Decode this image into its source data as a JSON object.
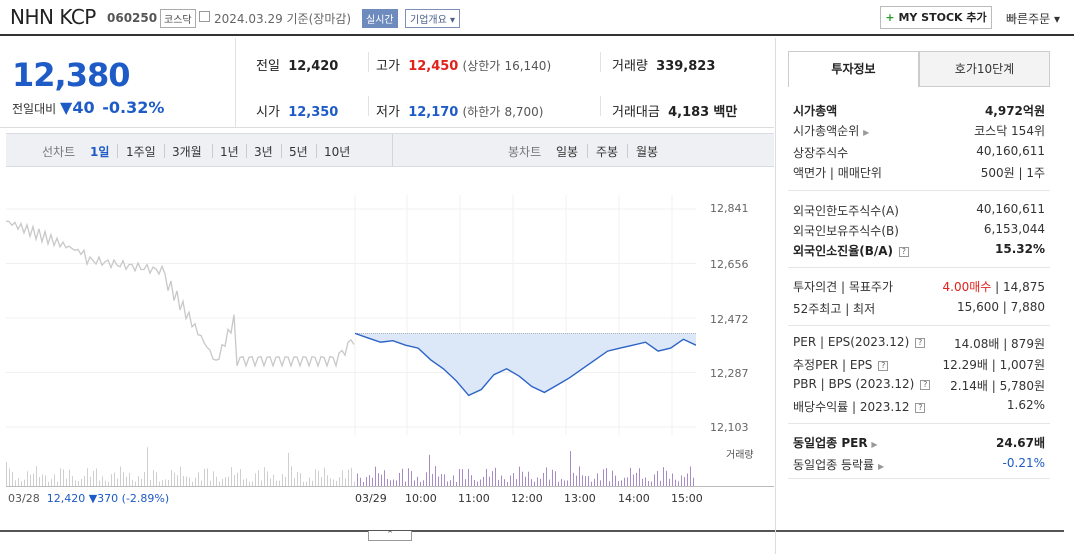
{
  "header": {
    "name": "NHN KCP",
    "code": "060250",
    "market": "코스닥",
    "date": "2024.03.29 기준(장마감)",
    "realtime": "실시간",
    "company_info": "기업개요 ▾",
    "mystock": "MY STOCK 추가",
    "mystock_plus": "+",
    "quick_order": "빠른주문 ▾"
  },
  "price": {
    "current": "12,380",
    "change_label": "전일대비",
    "change_arrow": "▼",
    "change": "40",
    "change_pct": "-0.32%"
  },
  "summary": {
    "prev_label": "전일",
    "prev": "12,420",
    "high_label": "고가",
    "high": "12,450",
    "upper_label": "(상한가",
    "upper": "16,140)",
    "volume_label": "거래량",
    "volume": "339,823",
    "open_label": "시가",
    "open": "12,350",
    "low_label": "저가",
    "low": "12,170",
    "lower_label": "(하한가",
    "lower": "8,700)",
    "amount_label": "거래대금",
    "amount": "4,183",
    "amount_unit": "백만"
  },
  "tabs": {
    "line_label": "선차트",
    "line": [
      "1일",
      "1주일",
      "3개월",
      "1년",
      "3년",
      "5년",
      "10년"
    ],
    "candle_label": "봉차트",
    "candle": [
      "일봉",
      "주봉",
      "월봉"
    ]
  },
  "chart_data": {
    "type": "line",
    "title": "",
    "ylim": [
      12103,
      12841
    ],
    "yticks": [
      "12,841",
      "12,656",
      "12,472",
      "12,287",
      "12,103"
    ],
    "x_labels": [
      "03/28",
      "03/29",
      "10:00",
      "11:00",
      "12:00",
      "13:00",
      "14:00",
      "15:00"
    ],
    "prev_close": 12420,
    "series": [
      {
        "name": "",
        "values": [
          12420,
          12405,
          12390,
          12395,
          12380,
          12370,
          12330,
          12300,
          12260,
          12210,
          12230,
          12280,
          12300,
          12275,
          12240,
          12220,
          12245,
          12270,
          12300,
          12330,
          12360,
          12370,
          12380,
          12390,
          12360,
          12370,
          12400,
          12380
        ]
      }
    ],
    "volume_label": "거래량"
  },
  "footer": {
    "prev_date": "03/28",
    "prev_close": "12,420",
    "prev_arrow": "▼",
    "prev_change": "370",
    "prev_pct": "(-2.89%)"
  },
  "right": {
    "tab_active": "투자정보",
    "tab_other": "호가10단계",
    "rows1": [
      {
        "label": "시가총액",
        "value": "4,972억원",
        "bold": true
      },
      {
        "label": "시가총액순위",
        "value": "코스닥 154위"
      },
      {
        "label": "상장주식수",
        "value": "40,160,611"
      },
      {
        "label": "액면가 | 매매단위",
        "value": "500원 | 1주"
      }
    ],
    "rows2": [
      {
        "label": "외국인한도주식수(A)",
        "value": "40,160,611"
      },
      {
        "label": "외국인보유주식수(B)",
        "value": "6,153,044"
      },
      {
        "label": "외국인소진율(B/A)",
        "value": "15.32%",
        "bold": true
      }
    ],
    "opinion_label": "투자의견 | 목표주가",
    "opinion": "4.00매수",
    "target": "14,875",
    "week52_label": "52주최고 | 최저",
    "week52": "15,600 | 7,880",
    "rows3": [
      {
        "label": "PER | EPS(2023.12)",
        "value": "14.08배 | 879원"
      },
      {
        "label": "추정PER | EPS",
        "value": "12.29배 | 1,007원"
      },
      {
        "label": "PBR | BPS (2023.12)",
        "value": "2.14배 | 5,780원"
      },
      {
        "label": "배당수익률 | 2023.12",
        "value": "1.62%"
      }
    ],
    "industry_per_label": "동일업종 PER",
    "industry_per": "24.67배",
    "industry_rate_label": "동일업종 등락률",
    "industry_rate": "-0.21%"
  }
}
